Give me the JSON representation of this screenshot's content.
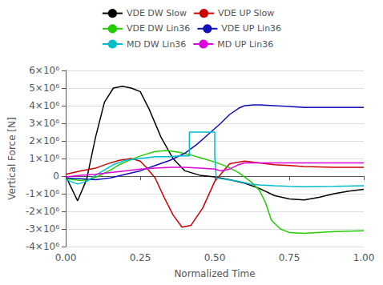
{
  "chart_data": {
    "type": "line",
    "xlabel": "Normalized Time",
    "ylabel": "Vertical Force [N]",
    "xlim": [
      0.0,
      1.0
    ],
    "ylim": [
      -4000000,
      6000000
    ],
    "xticks": [
      {
        "value": 0.0,
        "label": "0.00"
      },
      {
        "value": 0.25,
        "label": "0.25"
      },
      {
        "value": 0.5,
        "label": "0.50"
      },
      {
        "value": 0.75,
        "label": "0.75"
      },
      {
        "value": 1.0,
        "label": "1.00"
      }
    ],
    "yticks": [
      {
        "value": -4000000,
        "label": "-4×10⁶"
      },
      {
        "value": -3000000,
        "label": "-3×10⁶"
      },
      {
        "value": -2000000,
        "label": "-2×10⁶"
      },
      {
        "value": -1000000,
        "label": "-1×10⁶"
      },
      0,
      {
        "value": 1000000,
        "label": "1×10⁶"
      },
      {
        "value": 2000000,
        "label": "2×10⁶"
      },
      {
        "value": 3000000,
        "label": "3×10⁶"
      },
      {
        "value": 4000000,
        "label": "4×10⁶"
      },
      {
        "value": 5000000,
        "label": "5×10⁶"
      },
      {
        "value": 6000000,
        "label": "6×10⁶"
      }
    ],
    "grid": true,
    "series": [
      {
        "name": "VDE DW Slow",
        "color": "#000000",
        "x": [
          0.0,
          0.04,
          0.07,
          0.1,
          0.13,
          0.16,
          0.19,
          0.22,
          0.25,
          0.28,
          0.32,
          0.36,
          0.4,
          0.45,
          0.5,
          0.55,
          0.6,
          0.65,
          0.7,
          0.75,
          0.8,
          0.85,
          0.9,
          0.95,
          1.0
        ],
        "values": [
          0.0,
          -1400000.0,
          -200000.0,
          2200000.0,
          4200000.0,
          5000000.0,
          5100000.0,
          5000000.0,
          4800000.0,
          3800000.0,
          2200000.0,
          1000000.0,
          300000.0,
          50000.0,
          -50000.0,
          -200000.0,
          -400000.0,
          -700000.0,
          -1100000.0,
          -1300000.0,
          -1350000.0,
          -1200000.0,
          -1000000.0,
          -850000.0,
          -750000.0
        ]
      },
      {
        "name": "VDE UP Slow",
        "color": "#cc0000",
        "x": [
          0.0,
          0.05,
          0.1,
          0.14,
          0.18,
          0.22,
          0.25,
          0.27,
          0.3,
          0.33,
          0.36,
          0.39,
          0.42,
          0.46,
          0.5,
          0.55,
          0.6,
          0.65,
          0.7,
          0.75,
          0.8,
          0.9,
          1.0
        ],
        "values": [
          100000.0,
          300000.0,
          450000.0,
          700000.0,
          900000.0,
          1000000.0,
          850000.0,
          500000.0,
          -100000.0,
          -1200000.0,
          -2200000.0,
          -2900000.0,
          -2800000.0,
          -1800000.0,
          -300000.0,
          700000.0,
          850000.0,
          750000.0,
          650000.0,
          600000.0,
          550000.0,
          500000.0,
          500000.0
        ]
      },
      {
        "name": "VDE DW Lin36",
        "color": "#22cc00",
        "x": [
          0.0,
          0.05,
          0.08,
          0.11,
          0.15,
          0.18,
          0.22,
          0.26,
          0.3,
          0.34,
          0.38,
          0.42,
          0.46,
          0.5,
          0.54,
          0.58,
          0.62,
          0.65,
          0.67,
          0.69,
          0.72,
          0.75,
          0.8,
          0.9,
          1.0
        ],
        "values": [
          -150000.0,
          -250000.0,
          -200000.0,
          0.0,
          350000.0,
          650000.0,
          950000.0,
          1200000.0,
          1400000.0,
          1450000.0,
          1350000.0,
          1200000.0,
          1000000.0,
          800000.0,
          550000.0,
          200000.0,
          -300000.0,
          -800000.0,
          -1500000.0,
          -2500000.0,
          -3000000.0,
          -3200000.0,
          -3250000.0,
          -3150000.0,
          -3100000.0
        ]
      },
      {
        "name": "VDE UP Lin36",
        "color": "#1111bb",
        "x": [
          0.0,
          0.05,
          0.1,
          0.15,
          0.2,
          0.25,
          0.3,
          0.35,
          0.4,
          0.44,
          0.48,
          0.52,
          0.55,
          0.58,
          0.6,
          0.63,
          0.65,
          0.7,
          0.75,
          0.8,
          0.9,
          1.0
        ],
        "values": [
          -100000.0,
          -150000.0,
          -200000.0,
          -100000.0,
          100000.0,
          300000.0,
          600000.0,
          900000.0,
          1300000.0,
          1800000.0,
          2400000.0,
          3000000.0,
          3500000.0,
          3850000.0,
          4000000.0,
          4050000.0,
          4050000.0,
          4000000.0,
          3950000.0,
          3900000.0,
          3900000.0,
          3900000.0
        ]
      },
      {
        "name": "MD DW Lin36",
        "color": "#00bbcc",
        "x": [
          0.0,
          0.04,
          0.07,
          0.1,
          0.13,
          0.16,
          0.2,
          0.25,
          0.3,
          0.35,
          0.38,
          0.41,
          0.415,
          0.415,
          0.5,
          0.5,
          0.505,
          0.58,
          0.62,
          0.65,
          0.7,
          0.75,
          0.8,
          0.9,
          1.0
        ],
        "values": [
          -200000.0,
          -450000.0,
          -300000.0,
          50000.0,
          350000.0,
          650000.0,
          900000.0,
          1000000.0,
          1100000.0,
          1100000.0,
          1150000.0,
          1150000.0,
          1150000.0,
          2500000.0,
          2500000.0,
          1150000.0,
          -100000.0,
          -300000.0,
          -450000.0,
          -500000.0,
          -550000.0,
          -580000.0,
          -600000.0,
          -580000.0,
          -550000.0
        ]
      },
      {
        "name": "MD UP Lin36",
        "color": "#dd00dd",
        "x": [
          0.0,
          0.05,
          0.1,
          0.15,
          0.2,
          0.25,
          0.3,
          0.35,
          0.4,
          0.45,
          0.5,
          0.52,
          0.55,
          0.58,
          0.6,
          0.65,
          0.7,
          0.8,
          0.9,
          1.0
        ],
        "values": [
          -50000.0,
          50000.0,
          100000.0,
          200000.0,
          300000.0,
          400000.0,
          450000.0,
          500000.0,
          500000.0,
          450000.0,
          400000.0,
          300000.0,
          400000.0,
          650000.0,
          750000.0,
          750000.0,
          750000.0,
          750000.0,
          750000.0,
          750000.0
        ]
      }
    ]
  }
}
